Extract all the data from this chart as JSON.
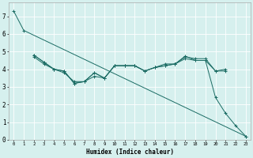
{
  "title": "",
  "xlabel": "Humidex (Indice chaleur)",
  "bg_color": "#d6f0ee",
  "line_color": "#1a6b63",
  "grid_color": "#ffffff",
  "xlim": [
    -0.5,
    23.5
  ],
  "ylim": [
    0,
    7.8
  ],
  "xticks": [
    0,
    1,
    2,
    3,
    4,
    5,
    6,
    7,
    8,
    9,
    10,
    11,
    12,
    13,
    14,
    15,
    16,
    17,
    18,
    19,
    20,
    21,
    22,
    23
  ],
  "yticks": [
    0,
    1,
    2,
    3,
    4,
    5,
    6,
    7
  ],
  "series": [
    {
      "x": [
        0,
        1,
        23
      ],
      "y": [
        7.3,
        6.2,
        0.2
      ]
    },
    {
      "x": [
        2,
        3,
        4,
        5,
        6,
        7,
        8,
        9,
        10,
        11,
        12,
        13,
        14,
        15,
        16,
        17,
        18,
        19,
        20,
        21
      ],
      "y": [
        4.8,
        4.4,
        4.0,
        3.9,
        3.2,
        3.3,
        3.8,
        3.5,
        4.2,
        4.2,
        4.2,
        3.9,
        4.1,
        4.2,
        4.3,
        4.7,
        4.6,
        4.6,
        3.9,
        3.9
      ]
    },
    {
      "x": [
        2,
        3,
        4,
        5,
        6,
        7,
        8,
        9,
        10,
        11,
        12,
        13,
        14,
        15,
        16,
        17,
        18,
        19,
        20,
        21,
        22,
        23
      ],
      "y": [
        4.7,
        4.3,
        4.0,
        3.8,
        3.3,
        3.3,
        3.6,
        3.5,
        4.2,
        4.2,
        4.2,
        3.9,
        4.1,
        4.2,
        4.3,
        4.6,
        4.5,
        4.5,
        2.4,
        1.5,
        0.8,
        0.2
      ]
    },
    {
      "x": [
        2,
        3,
        4,
        5,
        6,
        7,
        8,
        9,
        10,
        11,
        12,
        13,
        14,
        15,
        16,
        17,
        18,
        19,
        20,
        21
      ],
      "y": [
        4.8,
        4.4,
        4.0,
        3.9,
        3.2,
        3.3,
        3.8,
        3.5,
        4.2,
        4.2,
        4.2,
        3.9,
        4.1,
        4.3,
        4.3,
        4.75,
        4.5,
        4.5,
        3.9,
        4.0
      ]
    }
  ]
}
